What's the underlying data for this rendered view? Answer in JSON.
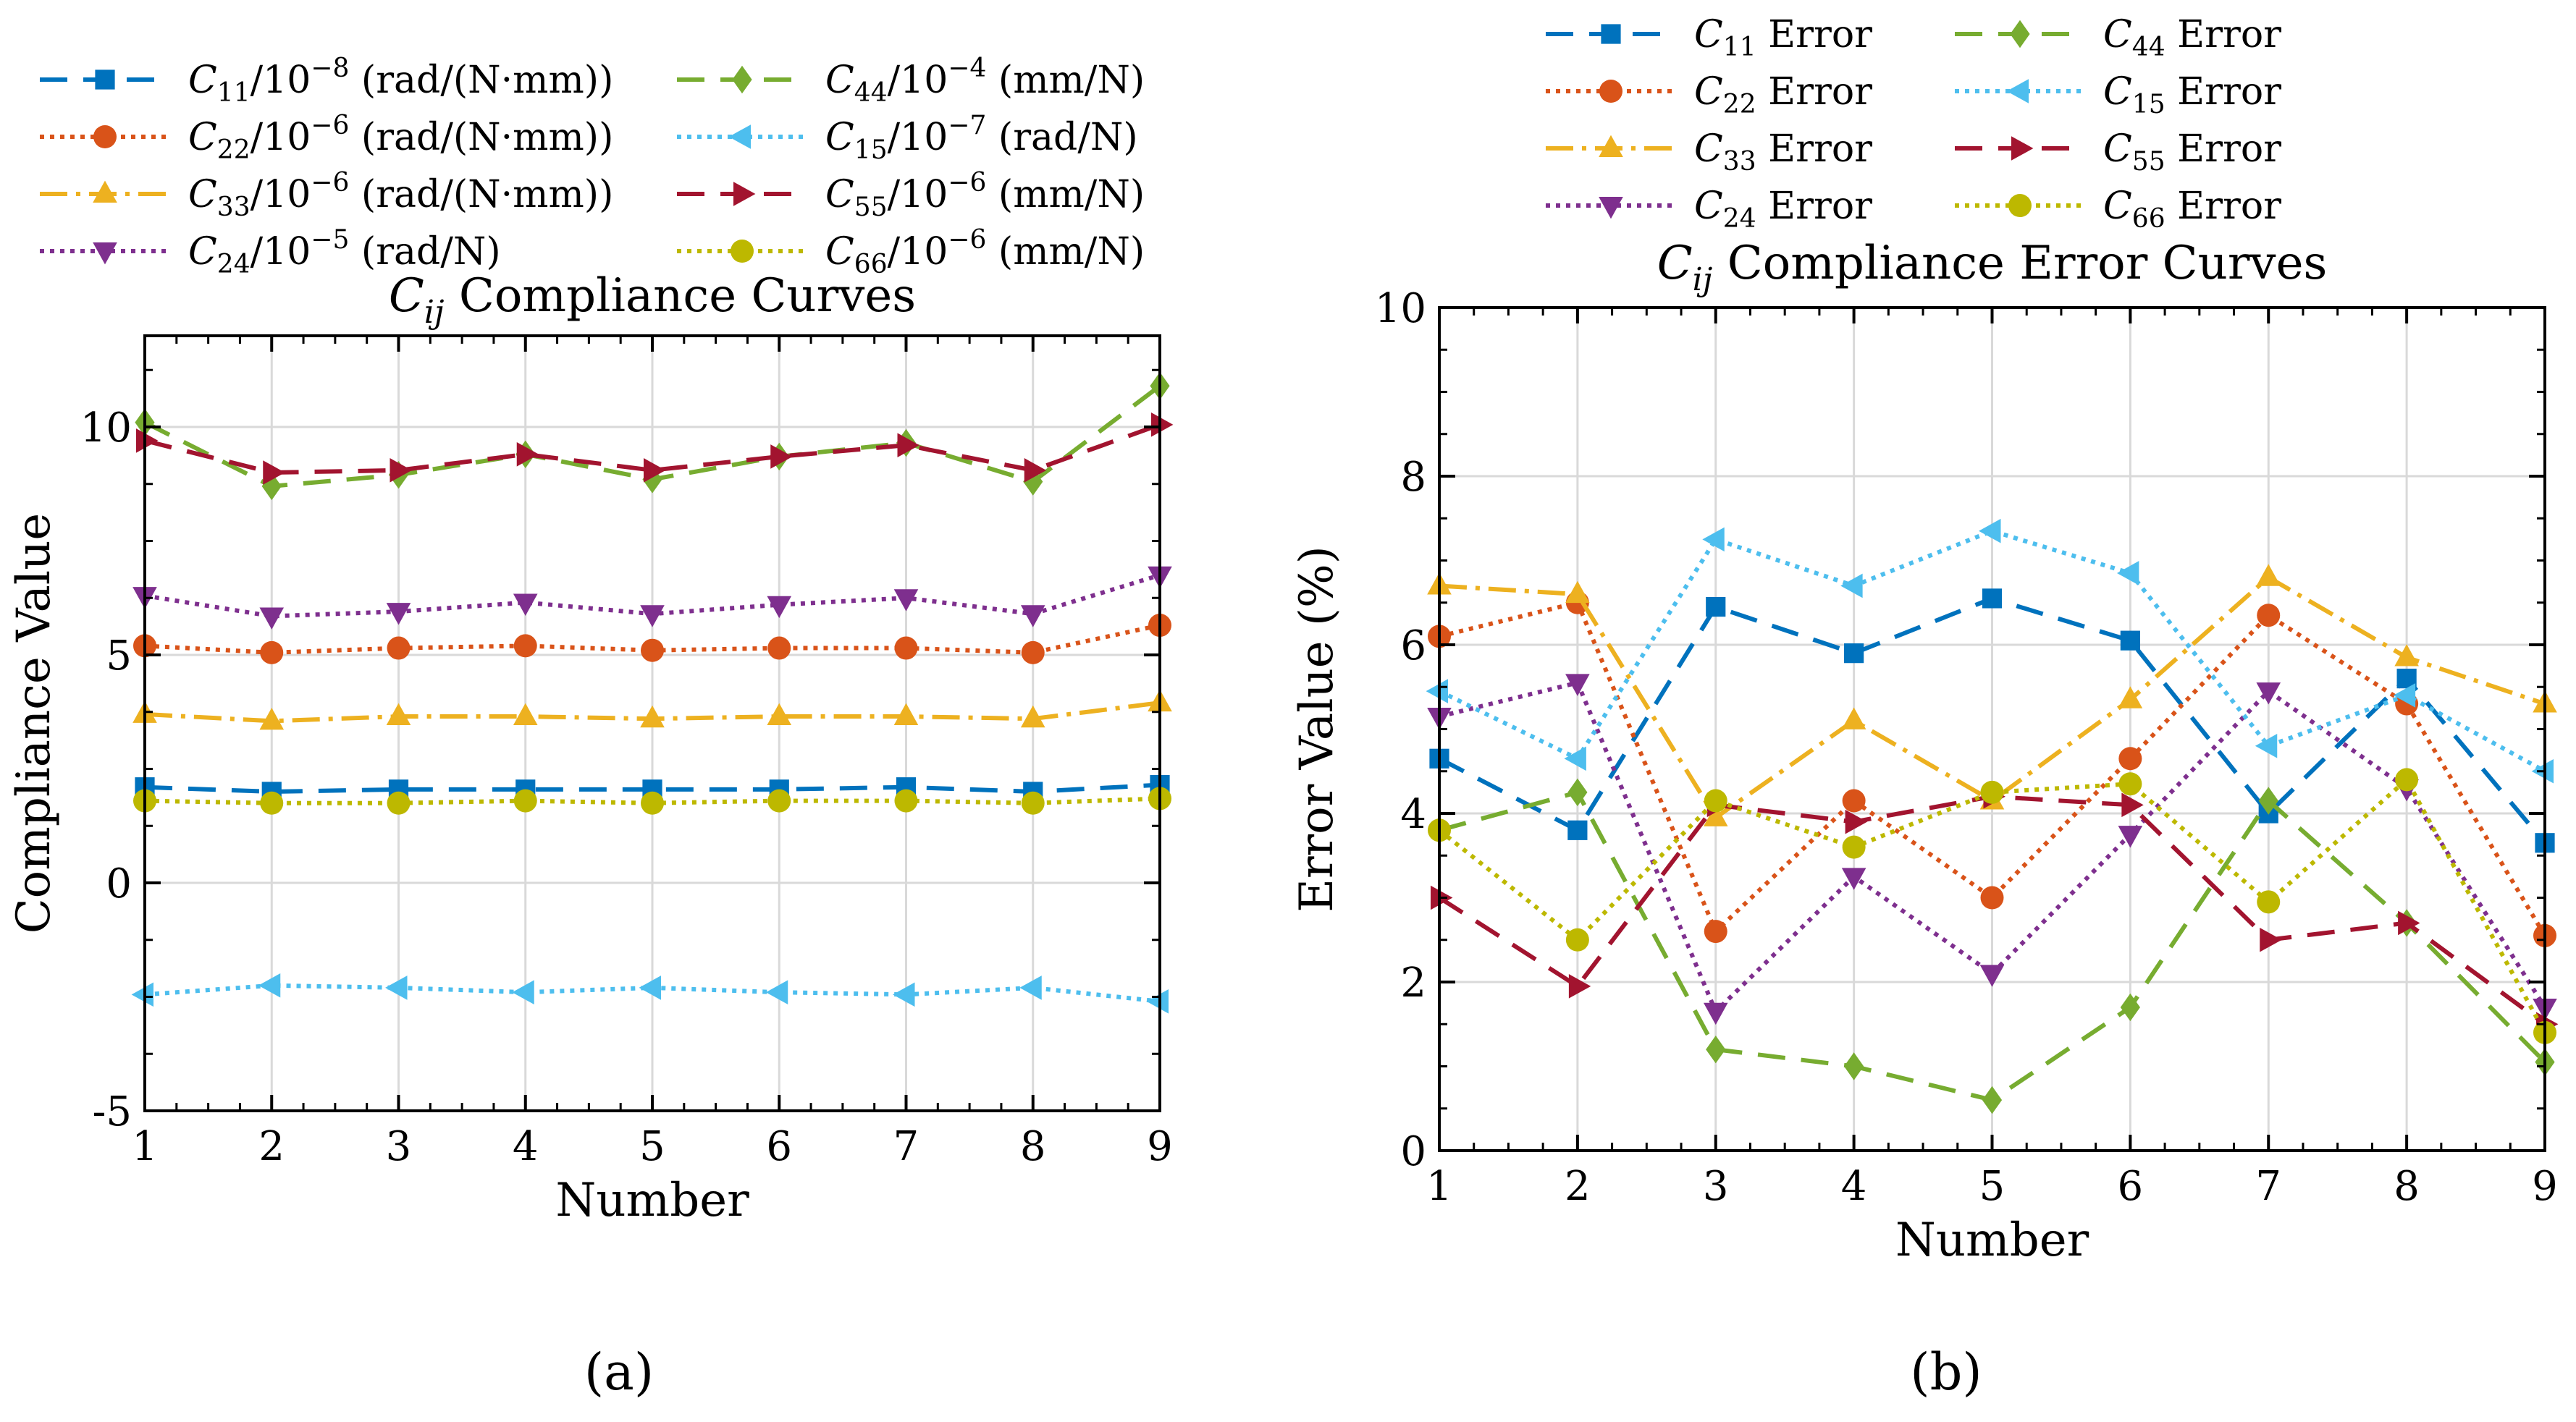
{
  "figure": {
    "panels": [
      "(a)",
      "(b)"
    ]
  },
  "chart_data": [
    {
      "type": "line",
      "title": "C_ij Compliance Curves",
      "title_main": "C",
      "title_sub": "ij",
      "title_rest": " Compliance Curves",
      "xlabel": "Number",
      "ylabel": "Compliance Value",
      "xlim": [
        1,
        9
      ],
      "ylim": [
        -5,
        12
      ],
      "xticks": [
        "1",
        "2",
        "3",
        "4",
        "5",
        "6",
        "7",
        "8",
        "9"
      ],
      "yticks": [
        "-5",
        "0",
        "5",
        "10"
      ],
      "ytick_values": [
        -5,
        0,
        5,
        10
      ],
      "grid": true,
      "legend_position": "top",
      "x": [
        1,
        2,
        3,
        4,
        5,
        6,
        7,
        8,
        9
      ],
      "series": [
        {
          "name": "C11/10^-8 (rad/(N·mm))",
          "lbl_main": "C",
          "lbl_sub": "11",
          "lbl_mid": "/10",
          "lbl_sup": "−8",
          "lbl_unit": " (rad/(N·mm))",
          "color": "#0072BD",
          "dash": "38,22",
          "marker": "square",
          "values": [
            2.1,
            2.0,
            2.05,
            2.05,
            2.05,
            2.05,
            2.1,
            2.0,
            2.15
          ]
        },
        {
          "name": "C22/10^-6 (rad/(N·mm))",
          "lbl_main": "C",
          "lbl_sub": "22",
          "lbl_mid": "/10",
          "lbl_sup": "−6",
          "lbl_unit": " (rad/(N·mm))",
          "color": "#D95319",
          "dash": "6,8",
          "marker": "circle",
          "values": [
            5.2,
            5.05,
            5.15,
            5.2,
            5.1,
            5.15,
            5.15,
            5.05,
            5.65
          ]
        },
        {
          "name": "C33/10^-6 (rad/(N·mm))",
          "lbl_main": "C",
          "lbl_sub": "33",
          "lbl_mid": "/10",
          "lbl_sup": "−6",
          "lbl_unit": " (rad/(N·mm))",
          "color": "#EDB120",
          "dash": "38,12,6,12",
          "marker": "triangle-up",
          "values": [
            3.7,
            3.55,
            3.65,
            3.65,
            3.6,
            3.65,
            3.65,
            3.6,
            3.95
          ]
        },
        {
          "name": "C24/10^-5 (rad/N)",
          "lbl_main": "C",
          "lbl_sub": "24",
          "lbl_mid": "/10",
          "lbl_sup": "−5",
          "lbl_unit": " (rad/N)",
          "color": "#7E2F8E",
          "dash": "6,8",
          "marker": "triangle-down",
          "values": [
            6.3,
            5.85,
            5.95,
            6.15,
            5.9,
            6.1,
            6.25,
            5.9,
            6.75
          ]
        },
        {
          "name": "C44/10^-4 (mm/N)",
          "lbl_main": "C",
          "lbl_sub": "44",
          "lbl_mid": "/10",
          "lbl_sup": "−4",
          "lbl_unit": " (mm/N)",
          "color": "#77AC30",
          "dash": "38,22",
          "marker": "diamond",
          "values": [
            10.1,
            8.7,
            8.95,
            9.4,
            8.85,
            9.35,
            9.65,
            8.8,
            10.9
          ]
        },
        {
          "name": "C15/10^-7 (rad/N)",
          "lbl_main": "C",
          "lbl_sub": "15",
          "lbl_mid": "/10",
          "lbl_sup": "−7",
          "lbl_unit": " (rad/N)",
          "color": "#4DBEEE",
          "dash": "6,8",
          "marker": "triangle-left",
          "values": [
            -2.45,
            -2.25,
            -2.3,
            -2.4,
            -2.3,
            -2.4,
            -2.45,
            -2.3,
            -2.6
          ]
        },
        {
          "name": "C55/10^-6 (mm/N)",
          "lbl_main": "C",
          "lbl_sub": "55",
          "lbl_mid": "/10",
          "lbl_sup": "−6",
          "lbl_unit": " (mm/N)",
          "color": "#A2142F",
          "dash": "38,22",
          "marker": "triangle-right",
          "values": [
            9.7,
            9.0,
            9.05,
            9.4,
            9.05,
            9.35,
            9.6,
            9.05,
            10.05
          ]
        },
        {
          "name": "C66/10^-6 (mm/N)",
          "lbl_main": "C",
          "lbl_sub": "66",
          "lbl_mid": "/10",
          "lbl_sup": "−6",
          "lbl_unit": " (mm/N)",
          "color": "#BDB800",
          "dash": "6,8",
          "marker": "circle",
          "values": [
            1.8,
            1.75,
            1.75,
            1.8,
            1.75,
            1.8,
            1.8,
            1.75,
            1.85
          ]
        }
      ]
    },
    {
      "type": "line",
      "title": "C_ij Compliance Error Curves",
      "title_main": "C",
      "title_sub": "ij",
      "title_rest": " Compliance Error Curves",
      "xlabel": "Number",
      "ylabel": "Error Value (%)",
      "xlim": [
        1,
        9
      ],
      "ylim": [
        0,
        10
      ],
      "xticks": [
        "1",
        "2",
        "3",
        "4",
        "5",
        "6",
        "7",
        "8",
        "9"
      ],
      "yticks": [
        "0",
        "2",
        "4",
        "6",
        "8",
        "10"
      ],
      "ytick_values": [
        0,
        2,
        4,
        6,
        8,
        10
      ],
      "grid": true,
      "legend_position": "top",
      "x": [
        1,
        2,
        3,
        4,
        5,
        6,
        7,
        8,
        9
      ],
      "series": [
        {
          "name": "C11 Error",
          "lbl_main": "C",
          "lbl_sub": "11",
          "lbl_rest": " Error",
          "color": "#0072BD",
          "dash": "38,22",
          "marker": "square",
          "values": [
            4.65,
            3.8,
            6.45,
            5.9,
            6.55,
            6.05,
            4.0,
            5.6,
            3.65
          ]
        },
        {
          "name": "C22 Error",
          "lbl_main": "C",
          "lbl_sub": "22",
          "lbl_rest": " Error",
          "color": "#D95319",
          "dash": "6,8",
          "marker": "circle",
          "values": [
            6.1,
            6.5,
            2.6,
            4.15,
            3.0,
            4.65,
            6.35,
            5.3,
            2.55
          ]
        },
        {
          "name": "C33 Error",
          "lbl_main": "C",
          "lbl_sub": "33",
          "lbl_rest": " Error",
          "color": "#EDB120",
          "dash": "38,12,6,12",
          "marker": "triangle-up",
          "values": [
            6.7,
            6.6,
            3.95,
            5.1,
            4.15,
            5.35,
            6.8,
            5.85,
            5.3
          ]
        },
        {
          "name": "C24 Error",
          "lbl_main": "C",
          "lbl_sub": "24",
          "lbl_rest": " Error",
          "color": "#7E2F8E",
          "dash": "6,8",
          "marker": "triangle-down",
          "values": [
            5.15,
            5.55,
            1.65,
            3.25,
            2.1,
            3.75,
            5.45,
            4.3,
            1.7
          ]
        },
        {
          "name": "C44 Error",
          "lbl_main": "C",
          "lbl_sub": "44",
          "lbl_rest": " Error",
          "color": "#77AC30",
          "dash": "38,22",
          "marker": "diamond",
          "values": [
            3.8,
            4.25,
            1.2,
            1.0,
            0.6,
            1.7,
            4.15,
            2.7,
            1.05
          ]
        },
        {
          "name": "C15 Error",
          "lbl_main": "C",
          "lbl_sub": "15",
          "lbl_rest": " Error",
          "color": "#4DBEEE",
          "dash": "6,8",
          "marker": "triangle-left",
          "values": [
            5.45,
            4.65,
            7.25,
            6.7,
            7.35,
            6.85,
            4.8,
            5.4,
            4.5
          ]
        },
        {
          "name": "C55 Error",
          "lbl_main": "C",
          "lbl_sub": "55",
          "lbl_rest": " Error",
          "color": "#A2142F",
          "dash": "38,22",
          "marker": "triangle-right",
          "values": [
            3.0,
            1.95,
            4.1,
            3.9,
            4.2,
            4.1,
            2.5,
            2.7,
            1.5
          ]
        },
        {
          "name": "C66 Error",
          "lbl_main": "C",
          "lbl_sub": "66",
          "lbl_rest": " Error",
          "color": "#BDB800",
          "dash": "6,8",
          "marker": "circle",
          "values": [
            3.8,
            2.5,
            4.15,
            3.6,
            4.25,
            4.35,
            2.95,
            4.4,
            1.4
          ]
        }
      ]
    }
  ]
}
